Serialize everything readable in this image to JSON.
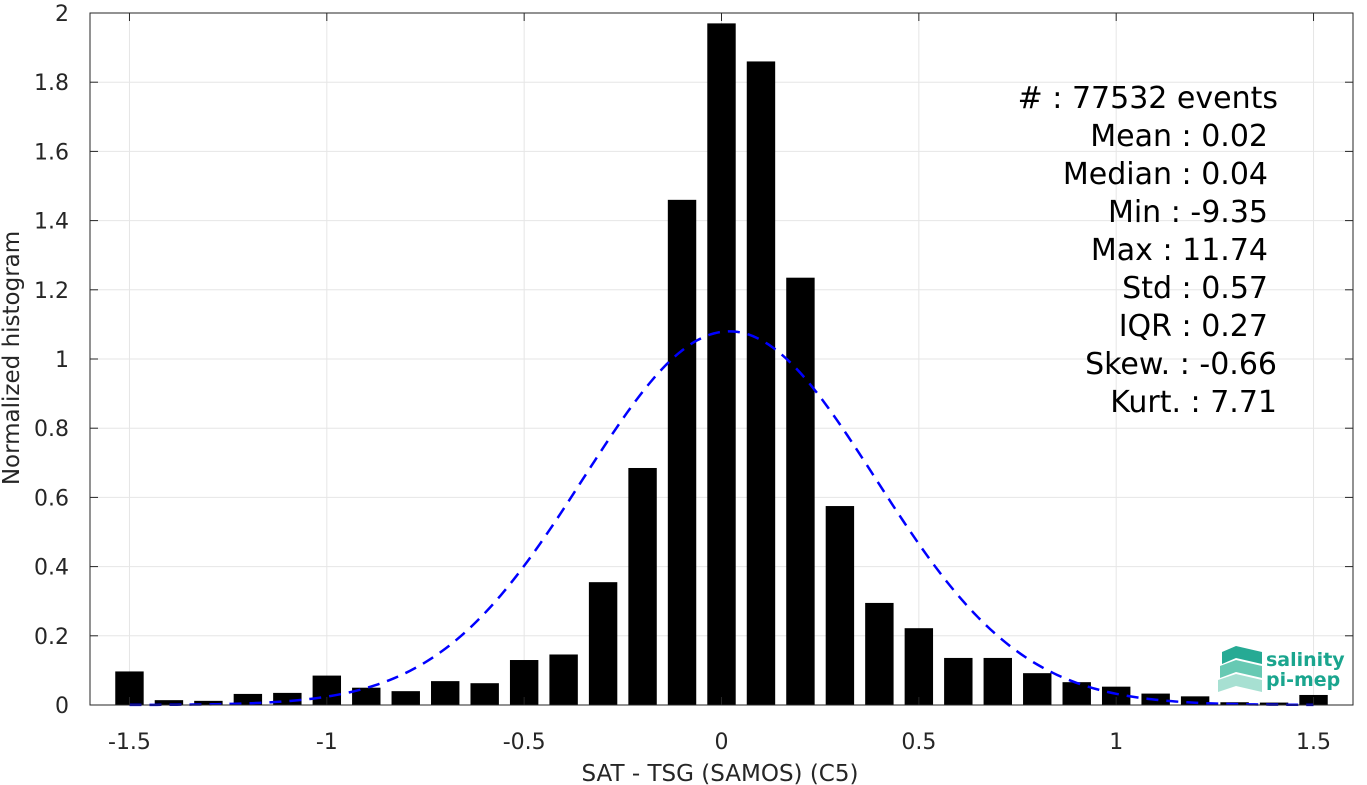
{
  "chart_data": {
    "type": "bar",
    "xlabel": "SAT - TSG (SAMOS) (C5)",
    "ylabel": "Normalized histogram",
    "xlim": [
      -1.6,
      1.6
    ],
    "ylim": [
      0,
      2
    ],
    "x_ticks": [
      -1.5,
      -1,
      -0.5,
      0,
      0.5,
      1,
      1.5
    ],
    "x_tick_labels": [
      "-1.5",
      "-1",
      "-0.5",
      "0",
      "0.5",
      "1",
      "1.5"
    ],
    "y_ticks": [
      0,
      0.2,
      0.4,
      0.6,
      0.8,
      1,
      1.2,
      1.4,
      1.6,
      1.8,
      2
    ],
    "y_tick_labels": [
      "0",
      "0.2",
      "0.4",
      "0.6",
      "0.8",
      "1",
      "1.2",
      "1.4",
      "1.6",
      "1.8",
      "2"
    ],
    "grid": true,
    "bar_color": "#000000",
    "bin_width": 0.1,
    "bins": {
      "x": [
        -1.5,
        -1.4,
        -1.3,
        -1.2,
        -1.1,
        -1.0,
        -0.9,
        -0.8,
        -0.7,
        -0.6,
        -0.5,
        -0.4,
        -0.3,
        -0.2,
        -0.1,
        0.0,
        0.1,
        0.2,
        0.3,
        0.4,
        0.5,
        0.6,
        0.7,
        0.8,
        0.9,
        1.0,
        1.1,
        1.2,
        1.3,
        1.4,
        1.5
      ],
      "values": [
        0.097,
        0.014,
        0.012,
        0.032,
        0.035,
        0.085,
        0.05,
        0.04,
        0.069,
        0.063,
        0.13,
        0.146,
        0.355,
        0.685,
        1.46,
        1.97,
        1.86,
        1.235,
        0.575,
        0.295,
        0.222,
        0.136,
        0.136,
        0.092,
        0.066,
        0.053,
        0.033,
        0.025,
        0.008,
        0.007,
        0.029
      ]
    },
    "fit_curve": {
      "type": "normal",
      "mean": 0.02,
      "std": 0.37,
      "peak": 1.08,
      "color": "#0000ff",
      "style": "dashed"
    },
    "stats": [
      {
        "label": "#  : 77532 events"
      },
      {
        "label": "Mean : 0.02"
      },
      {
        "label": "Median : 0.04"
      },
      {
        "label": "Min : -9.35"
      },
      {
        "label": "Max : 11.74"
      },
      {
        "label": "Std : 0.57"
      },
      {
        "label": "IQR : 0.27"
      },
      {
        "label": "Skew. : -0.66"
      },
      {
        "label": "Kurt. : 7.71"
      }
    ]
  },
  "logo": {
    "line1": "salinity",
    "line2": "pi-mep",
    "color": "#1aa58e"
  }
}
